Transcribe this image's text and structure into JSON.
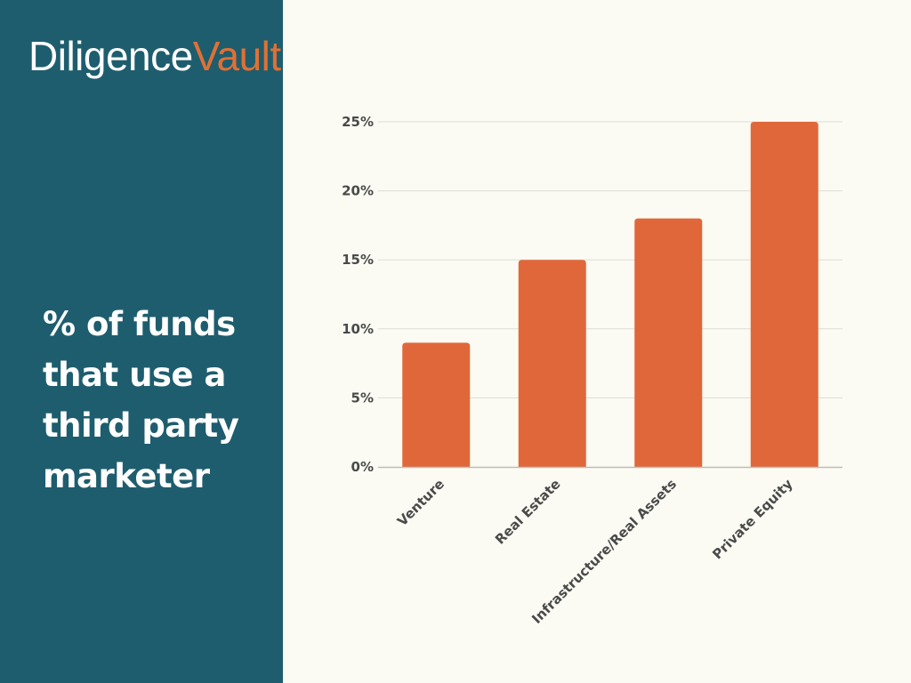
{
  "brand": {
    "logo_part1": "Diligence",
    "logo_part2": "Vault",
    "accent_color": "#e07035",
    "panel_color": "#1e5d6e"
  },
  "headline": "% of funds that use a third party marketer",
  "chart_data": {
    "type": "bar",
    "categories": [
      "Venture",
      "Real Estate",
      "Infrastructure/Real Assets",
      "Private Equity"
    ],
    "values": [
      9,
      15,
      18,
      25
    ],
    "title": "",
    "xlabel": "",
    "ylabel": "",
    "ylim": [
      0,
      25
    ],
    "yticks": [
      0,
      5,
      10,
      15,
      20,
      25
    ],
    "ytick_labels": [
      "0%",
      "5%",
      "10%",
      "15%",
      "20%",
      "25%"
    ],
    "grid": true,
    "bar_color": "#e0673a",
    "grid_color": "#dcdcd4"
  }
}
